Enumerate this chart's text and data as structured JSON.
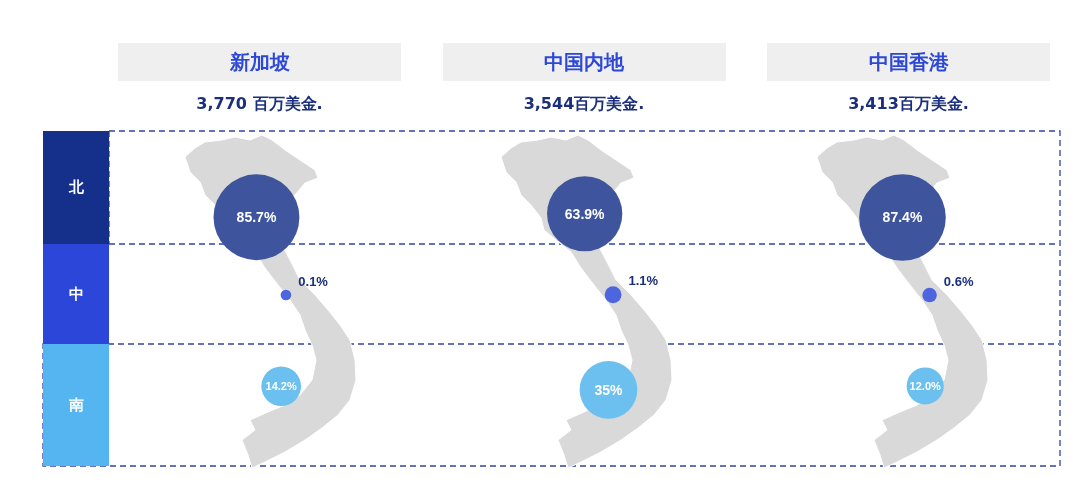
{
  "chart_data": [
    {
      "type": "other",
      "title": "新加坡",
      "subtitle": "3,770 百万美金.",
      "categories": [
        "北",
        "中",
        "南"
      ],
      "values": [
        85.7,
        0.1,
        14.2
      ],
      "value_labels": [
        "85.7%",
        "0.1%",
        "14.2%"
      ],
      "colors": [
        "#3e559e",
        "#4d66df",
        "#6cc0f0"
      ]
    },
    {
      "type": "other",
      "title": "中国内地",
      "subtitle": "3,544百万美金.",
      "categories": [
        null,
        null,
        null
      ],
      "values": [
        63.9,
        1.1,
        35
      ],
      "value_labels": [
        "63.9%",
        "1.1%",
        "35%"
      ],
      "colors": [
        "#3e559e",
        "#4d66df",
        "#6cc0f0"
      ]
    },
    {
      "type": "other",
      "title": "中国香港",
      "subtitle": "3,413百万美金.",
      "categories": [
        null,
        null,
        null
      ],
      "values": [
        87.4,
        0.6,
        12.0
      ],
      "value_labels": [
        "87.4%",
        "0.6%",
        "12.0%"
      ],
      "colors": [
        "#3e559e",
        "#4d66df",
        "#6cc0f0"
      ]
    }
  ]
}
